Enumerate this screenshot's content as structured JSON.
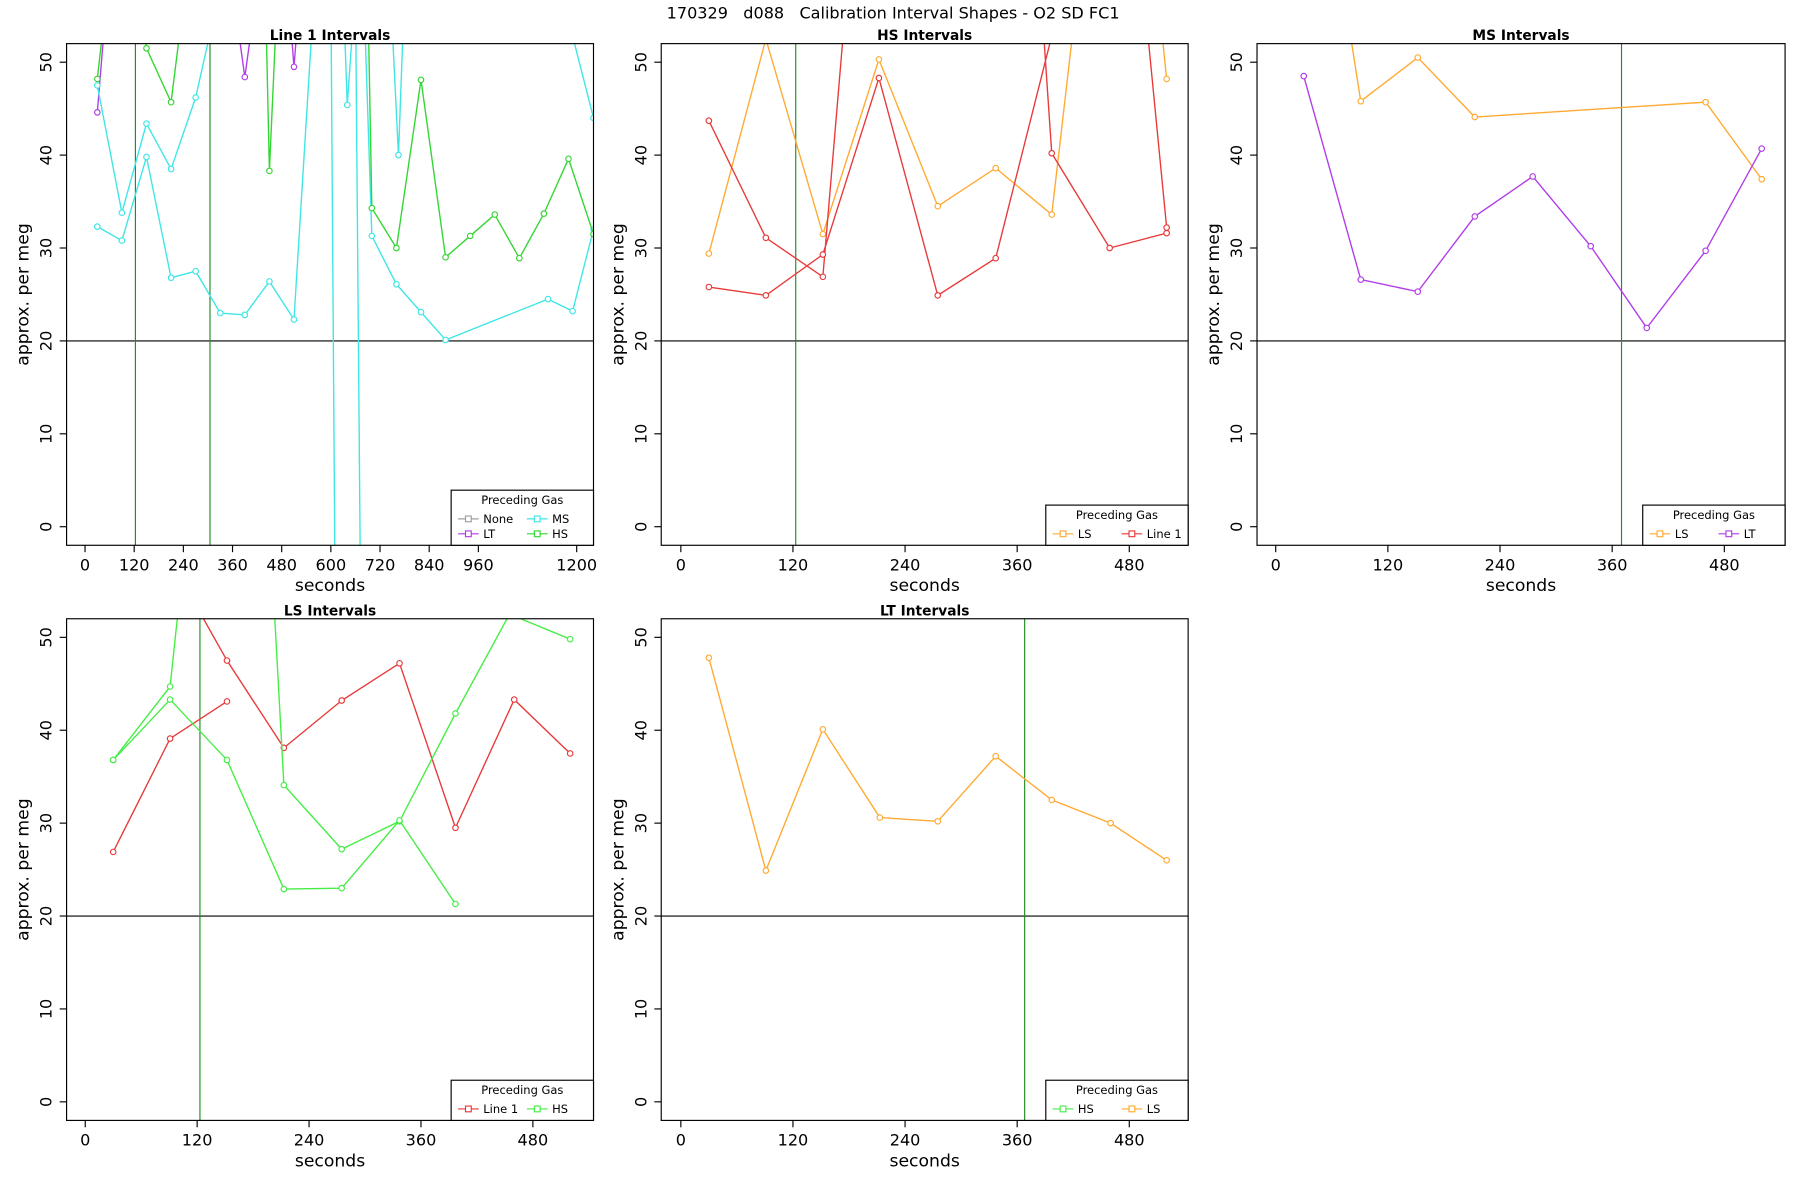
{
  "title": "170329   d088   Calibration Interval Shapes - O2 SD FC1",
  "chart_data": [
    {
      "type": "line",
      "title": "Line 1 Intervals",
      "xlabel": "seconds",
      "ylabel": "approx. per meg",
      "xlim": [
        -45,
        1241
      ],
      "ylim": [
        -2,
        52
      ],
      "xticks": [
        0,
        120,
        240,
        360,
        480,
        600,
        720,
        840,
        960,
        1200
      ],
      "yticks": [
        0,
        10,
        20,
        30,
        40,
        50
      ],
      "hline": 20,
      "vlines": [
        123,
        305
      ],
      "vline_color": "#228b22",
      "legend": "bottomright",
      "legend_title": "Preceding Gas",
      "series": [
        {
          "name": "None",
          "color": "#9e9e9e",
          "x": [],
          "values": []
        },
        {
          "name": "LT",
          "color": "#b03de8",
          "x": [
            30,
            55,
            null,
            360,
            390,
            420,
            null,
            495,
            510,
            525
          ],
          "values": [
            44.6,
            58,
            null,
            58,
            48.4,
            58,
            null,
            58,
            49.5,
            58
          ]
        },
        {
          "name": "MS",
          "color": "#3ee6e6",
          "x": [
            30,
            90,
            150,
            210,
            270,
            330,
            null,
            30,
            90,
            150,
            210,
            270,
            330,
            390,
            450,
            510,
            560,
            600,
            610,
            null,
            630,
            640,
            660,
            672,
            null,
            680,
            700,
            760,
            820,
            880,
            1130,
            1190,
            1241,
            null,
            745,
            765,
            780,
            null,
            1160,
            1241
          ],
          "values": [
            47.5,
            33.8,
            43.4,
            38.5,
            46.2,
            58,
            null,
            32.3,
            30.8,
            39.8,
            26.8,
            27.5,
            23,
            22.8,
            26.4,
            22.3,
            58,
            58,
            -5,
            null,
            58,
            45.4,
            58,
            -5,
            null,
            58,
            31.3,
            26.1,
            23.1,
            20.1,
            24.5,
            23.2,
            32,
            null,
            58,
            40,
            58,
            null,
            58,
            44
          ]
        },
        {
          "name": "HS",
          "color": "#33d633",
          "x": [
            30,
            55,
            null,
            135,
            150,
            210,
            245,
            null,
            440,
            450,
            470,
            null,
            690,
            700,
            760,
            820,
            880,
            940,
            1000,
            1060,
            1120,
            1180,
            1241
          ],
          "values": [
            48.2,
            58,
            null,
            58,
            51.5,
            45.7,
            58,
            null,
            58,
            38.3,
            58,
            null,
            58,
            34.3,
            30,
            48.1,
            29,
            31.3,
            33.6,
            28.9,
            33.7,
            39.6,
            31.5
          ]
        }
      ]
    },
    {
      "type": "line",
      "title": "HS Intervals",
      "xlabel": "seconds",
      "ylabel": "approx. per meg",
      "xlim": [
        -21,
        543
      ],
      "ylim": [
        -2,
        52
      ],
      "xticks": [
        0,
        120,
        240,
        360,
        480
      ],
      "yticks": [
        0,
        10,
        20,
        30,
        40,
        50
      ],
      "hline": 20,
      "vlines": [
        123
      ],
      "vline_color": "#228b22",
      "legend": "bottomright",
      "legend_title": "Preceding Gas",
      "series": [
        {
          "name": "LS",
          "color": "#ffaa33",
          "x": [
            30,
            91,
            152,
            212,
            275,
            337,
            397,
            425,
            null,
            510,
            520
          ],
          "values": [
            29.4,
            52.5,
            31.5,
            50.3,
            34.5,
            38.6,
            33.6,
            58,
            null,
            58,
            48.2
          ]
        },
        {
          "name": "Line 1",
          "color": "#e83a3a",
          "x": [
            30,
            91,
            152,
            178,
            null,
            30,
            91,
            152,
            212,
            275,
            337,
            410,
            null,
            385,
            397,
            459,
            520,
            null,
            495,
            520
          ],
          "values": [
            43.7,
            31.1,
            26.9,
            58,
            null,
            25.8,
            24.9,
            29.3,
            48.3,
            24.9,
            28.9,
            58,
            null,
            58,
            40.2,
            30,
            31.6,
            null,
            58,
            32.2
          ]
        }
      ]
    },
    {
      "type": "line",
      "title": "MS Intervals",
      "xlabel": "seconds",
      "ylabel": "approx. per meg",
      "xlim": [
        -20,
        545
      ],
      "ylim": [
        -2,
        52
      ],
      "xticks": [
        0,
        120,
        240,
        360,
        480
      ],
      "yticks": [
        0,
        10,
        20,
        30,
        40,
        50
      ],
      "hline": 20,
      "vlines": [
        370
      ],
      "vline_color": "#228b22",
      "legend": "bottomright",
      "legend_title": "Preceding Gas",
      "series": [
        {
          "name": "LS",
          "color": "#ffaa33",
          "x": [
            72,
            91,
            152,
            213,
            460,
            520
          ],
          "values": [
            58,
            45.8,
            50.5,
            44.1,
            45.7,
            37.4
          ]
        },
        {
          "name": "LT",
          "color": "#b03de8",
          "x": [
            30,
            91,
            152,
            213,
            275,
            337,
            397,
            460,
            520
          ],
          "values": [
            48.5,
            26.6,
            25.3,
            33.4,
            37.7,
            30.2,
            21.4,
            29.7,
            40.7
          ]
        }
      ]
    },
    {
      "type": "line",
      "title": "LS Intervals",
      "xlabel": "seconds",
      "ylabel": "approx. per meg",
      "xlim": [
        -20,
        545
      ],
      "ylim": [
        -2,
        52
      ],
      "xticks": [
        0,
        120,
        240,
        360,
        480
      ],
      "yticks": [
        0,
        10,
        20,
        30,
        40,
        50
      ],
      "hline": 20,
      "vlines": [
        123
      ],
      "vline_color": "#228b22",
      "legend": "bottomright",
      "legend_title": "Preceding Gas",
      "series": [
        {
          "name": "Line 1",
          "color": "#e83a3a",
          "x": [
            30,
            91,
            152,
            null,
            110,
            152,
            213,
            275,
            337,
            397,
            460,
            520
          ],
          "values": [
            26.9,
            39.1,
            43.1,
            null,
            55,
            47.5,
            38.1,
            43.2,
            47.2,
            29.5,
            43.3,
            37.5
          ]
        },
        {
          "name": "HS",
          "color": "#44ee44",
          "x": [
            30,
            91,
            105,
            null,
            200,
            213,
            275,
            337,
            397,
            455,
            520,
            null,
            30,
            91,
            152,
            213,
            275,
            337,
            397
          ],
          "values": [
            36.8,
            44.7,
            58,
            null,
            58,
            34.1,
            27.2,
            30.2,
            41.8,
            52.5,
            49.8,
            null,
            36.8,
            43.3,
            36.8,
            22.9,
            23,
            30.3,
            21.3
          ]
        }
      ]
    },
    {
      "type": "line",
      "title": "LT Intervals",
      "xlabel": "seconds",
      "ylabel": "approx. per meg",
      "xlim": [
        -21,
        543
      ],
      "ylim": [
        -2,
        52
      ],
      "xticks": [
        0,
        120,
        240,
        360,
        480
      ],
      "yticks": [
        0,
        10,
        20,
        30,
        40,
        50
      ],
      "hline": 20,
      "vlines": [
        368
      ],
      "vline_color": "#228b22",
      "legend": "bottomright",
      "legend_title": "Preceding Gas",
      "series": [
        {
          "name": "HS",
          "color": "#44ee44",
          "x": [],
          "values": []
        },
        {
          "name": "LS",
          "color": "#ffaa33",
          "x": [
            30,
            91,
            152,
            213,
            275,
            337,
            397,
            460,
            520
          ],
          "values": [
            47.8,
            24.9,
            40.1,
            30.6,
            30.2,
            37.2,
            32.5,
            30,
            26
          ]
        }
      ]
    }
  ]
}
